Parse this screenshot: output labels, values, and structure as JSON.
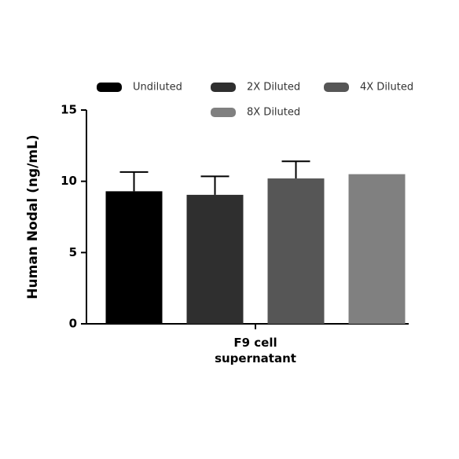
{
  "chart_data": {
    "type": "bar",
    "y_label": "Human Nodal (ng/mL)",
    "categories": [
      "F9 cell supernatant"
    ],
    "series": [
      {
        "name": "Undiluted",
        "color": "#000000",
        "values": [
          9.3
        ],
        "errors": [
          1.35
        ]
      },
      {
        "name": "2X Diluted",
        "color": "#2f2f2f",
        "values": [
          9.05
        ],
        "errors": [
          1.3
        ]
      },
      {
        "name": "4X Diluted",
        "color": "#565656",
        "values": [
          10.2
        ],
        "errors": [
          1.2
        ]
      },
      {
        "name": "8X Diluted",
        "color": "#808080",
        "values": [
          10.5
        ],
        "errors": [
          null
        ]
      }
    ],
    "ylim": [
      0,
      15
    ],
    "yticks": [
      0,
      5,
      10,
      15
    ]
  }
}
